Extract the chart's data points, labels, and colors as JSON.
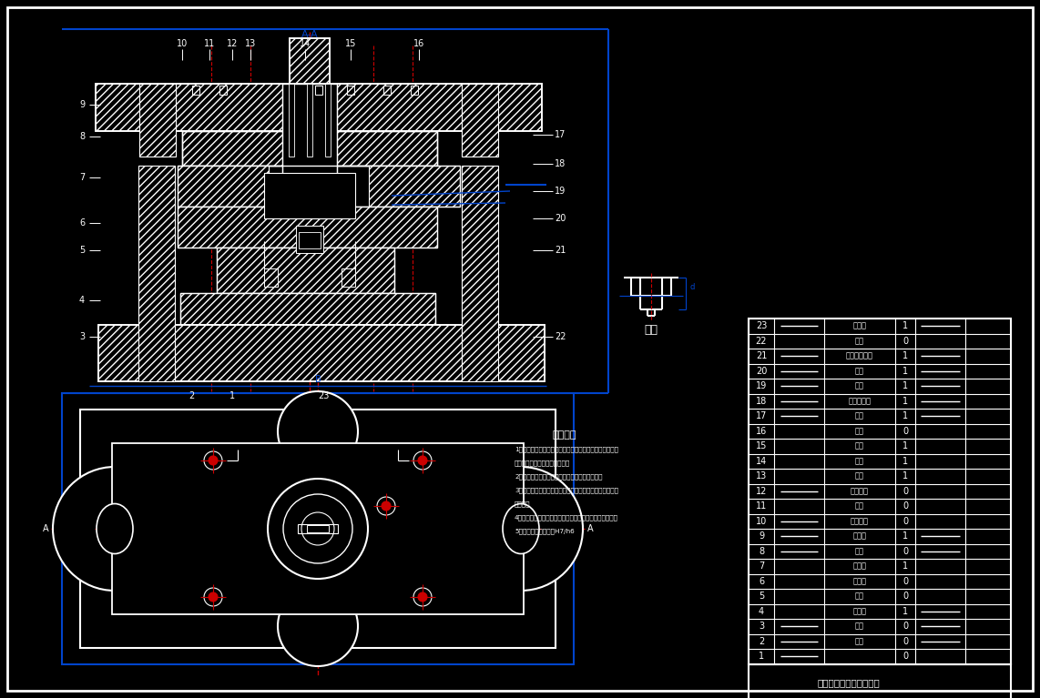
{
  "background_color": "#000000",
  "W": "#ffffff",
  "R": "#cc0000",
  "B": "#0044cc",
  "title": "冲孔切边复合模具装配图",
  "work_piece_label": "工件",
  "tech_req_title": "技术要求",
  "tech_req_lines": [
    "1：组成模具各零件的材料、尺寸及精度、形位公差、表面",
    "粗糙度及热处理等均应符合要求",
    "2：上下模座之上下平面的平行度应达到较高精度",
    "3：凸凹模之间的间隙应达到规范的要求，且四周的间隙应",
    "均匀一致",
    "4：模具的上模部分沿导柱上、下移动应平稳，无阻滞现象",
    "5：导柱与导套的配合H7/h6"
  ],
  "part_rows": [
    [
      "23",
      true,
      "下模座",
      "1",
      true
    ],
    [
      "22",
      false,
      "螺钉",
      "0",
      false
    ],
    [
      "21",
      true,
      "凸凹模固定板",
      "1",
      true
    ],
    [
      "20",
      true,
      "凸模",
      "1",
      true
    ],
    [
      "19",
      true,
      "凸模",
      "1",
      true
    ],
    [
      "18",
      true,
      "凸模固定板",
      "1",
      true
    ],
    [
      "17",
      true,
      "盖板",
      "1",
      true
    ],
    [
      "16",
      false,
      "螺钉",
      "0",
      false
    ],
    [
      "15",
      false,
      "模柄",
      "1",
      false
    ],
    [
      "14",
      false,
      "推杆",
      "1",
      false
    ],
    [
      "13",
      false,
      "推板",
      "1",
      false
    ],
    [
      "12",
      true,
      "圆柱螺钉",
      "0",
      false
    ],
    [
      "11",
      false,
      "推杆",
      "0",
      false
    ],
    [
      "10",
      true,
      "圆柱螺钉",
      "0",
      false
    ],
    [
      "9",
      true,
      "上模座",
      "1",
      true
    ],
    [
      "8",
      true,
      "导套",
      "0",
      true
    ],
    [
      "7",
      false,
      "推件板",
      "1",
      false
    ],
    [
      "6",
      false,
      "废料刀",
      "0",
      false
    ],
    [
      "5",
      false,
      "工件",
      "0",
      false
    ],
    [
      "4",
      false,
      "凸凹模",
      "1",
      true
    ],
    [
      "3",
      true,
      "凸模",
      "0",
      true
    ],
    [
      "2",
      true,
      "导柱",
      "0",
      true
    ],
    [
      "1",
      true,
      "",
      "0",
      false
    ]
  ]
}
